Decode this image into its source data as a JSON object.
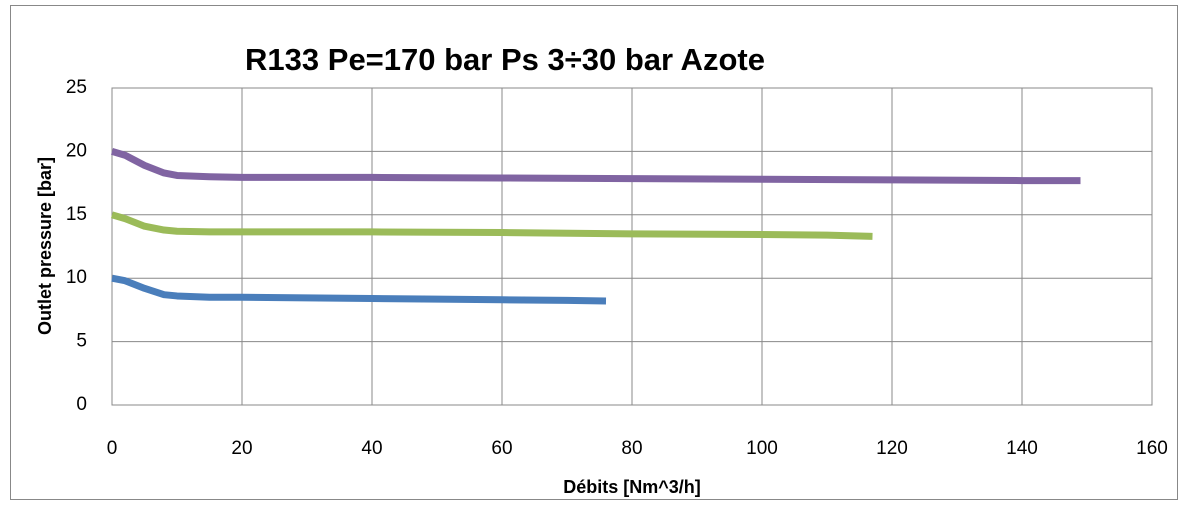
{
  "chart_data": {
    "type": "line",
    "title": "R133  Pe=170 bar  Ps 3÷30 bar   Azote",
    "x_label": "Débits [Nm^3/h]",
    "y_label": "Outlet pressure [bar]",
    "series": [
      {
        "color": "#4a7ebb",
        "x": [
          0,
          2,
          5,
          8,
          10,
          15,
          20,
          30,
          40,
          50,
          60,
          70,
          76
        ],
        "values": [
          10,
          9.8,
          9.2,
          8.7,
          8.6,
          8.5,
          8.5,
          8.45,
          8.4,
          8.35,
          8.3,
          8.25,
          8.2
        ]
      },
      {
        "color": "#9bbb59",
        "x": [
          0,
          2,
          5,
          8,
          10,
          15,
          20,
          40,
          60,
          80,
          100,
          110,
          117
        ],
        "values": [
          15,
          14.7,
          14.1,
          13.8,
          13.7,
          13.65,
          13.65,
          13.65,
          13.6,
          13.5,
          13.45,
          13.4,
          13.3
        ]
      },
      {
        "color": "#8064a2",
        "x": [
          0,
          2,
          5,
          8,
          10,
          15,
          20,
          40,
          60,
          80,
          100,
          120,
          140,
          149
        ],
        "values": [
          20,
          19.7,
          18.9,
          18.3,
          18.1,
          18.0,
          17.95,
          17.95,
          17.9,
          17.85,
          17.8,
          17.75,
          17.7,
          17.7
        ]
      }
    ],
    "xlim": [
      0,
      160
    ],
    "xticks": [
      0,
      20,
      40,
      60,
      80,
      100,
      120,
      140,
      160
    ],
    "ylim": [
      0,
      25
    ],
    "yticks": [
      0,
      5,
      10,
      15,
      20,
      25
    ],
    "grid": true
  }
}
